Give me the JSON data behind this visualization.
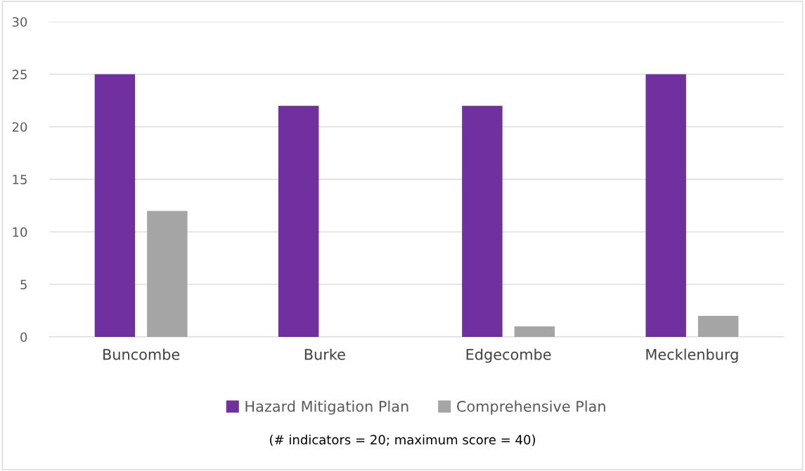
{
  "chart_data": {
    "type": "bar",
    "categories": [
      "Buncombe",
      "Burke",
      "Edgecombe",
      "Mecklenburg"
    ],
    "series": [
      {
        "name": "Hazard Mitigation Plan",
        "color": "#7030a0",
        "values": [
          25,
          22,
          22,
          25
        ]
      },
      {
        "name": "Comprehensive Plan",
        "color": "#a5a5a5",
        "values": [
          12,
          0,
          1,
          2
        ]
      }
    ],
    "ylim": [
      0,
      30
    ],
    "yticks": [
      0,
      5,
      10,
      15,
      20,
      25,
      30
    ],
    "grid": "y",
    "legend": "bottom",
    "annotations": [
      "(# indicators = 20; maximum score = 40)"
    ]
  }
}
